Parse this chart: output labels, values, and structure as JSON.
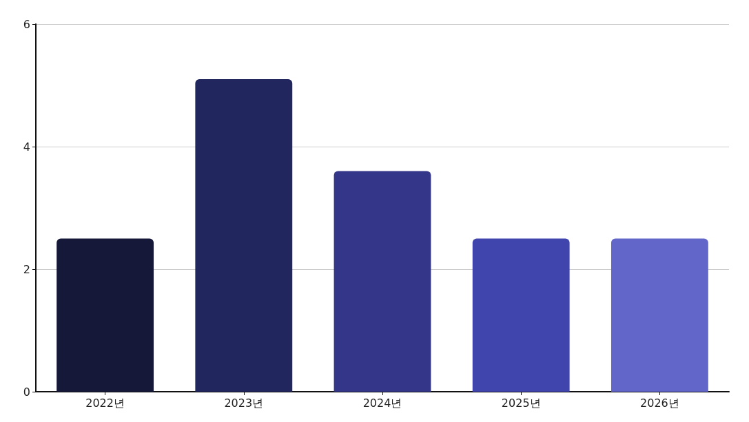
{
  "chart_data": {
    "type": "bar",
    "categories": [
      "2022년",
      "2023년",
      "2024년",
      "2025년",
      "2026년"
    ],
    "values": [
      2.5,
      5.1,
      3.6,
      2.5,
      2.5
    ],
    "colors": [
      "#151838",
      "#21265e",
      "#333689",
      "#4045ad",
      "#6366c9"
    ],
    "ylim": [
      0,
      6
    ],
    "yticks": [
      0,
      2,
      4,
      6
    ],
    "grid": "y"
  }
}
